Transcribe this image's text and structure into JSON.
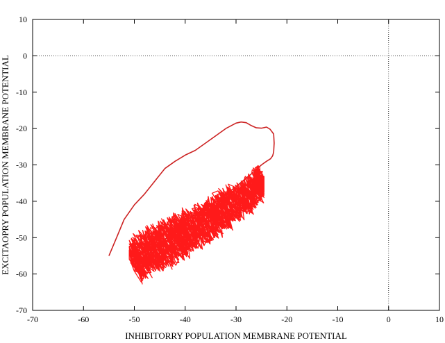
{
  "chart_data": {
    "type": "line",
    "title": "",
    "xlabel": "INHIBITORRY POPULATION MEMBRANE POTENTIAL",
    "ylabel": "EXCITAOPRY POPULATION MEMBRANE POTENTIAL",
    "xlim": [
      -70,
      10
    ],
    "ylim": [
      -70,
      10
    ],
    "x_ticks": [
      -70,
      -60,
      -50,
      -40,
      -30,
      -20,
      -10,
      0,
      10
    ],
    "y_ticks": [
      -70,
      -60,
      -50,
      -40,
      -30,
      -20,
      -10,
      0,
      10
    ],
    "x_tick_labels": [
      "-70",
      "-60",
      "-50",
      "-40",
      "-30",
      "-20",
      "-10",
      "0",
      "10"
    ],
    "y_tick_labels": [
      "-70",
      "-60",
      "-50",
      "-40",
      "-30",
      "-20",
      "-10",
      "0",
      "10"
    ],
    "zero_lines": {
      "x": 0,
      "y": 0,
      "style": "dotted"
    },
    "grid": false,
    "legend": "none",
    "series": [
      {
        "color": "#cc2222",
        "style": "transient",
        "x": [
          -55,
          -53.5,
          -52,
          -50,
          -48,
          -46,
          -44,
          -42,
          -40,
          -38,
          -36,
          -34,
          -32,
          -30,
          -29,
          -28,
          -27,
          -26,
          -25,
          -24,
          -23.3,
          -22.6,
          -22.5,
          -22.6,
          -22.8,
          -23.2,
          -24,
          -25,
          -26,
          -27,
          -28,
          -29,
          -30,
          -32,
          -34,
          -36,
          -38,
          -40,
          -42,
          -44,
          -46,
          -48,
          -49.5
        ],
        "y": [
          -55,
          -50,
          -45,
          -41,
          -38,
          -34.5,
          -31,
          -29,
          -27.3,
          -26,
          -24,
          -22,
          -20,
          -18.5,
          -18.2,
          -18.4,
          -19.2,
          -19.8,
          -19.9,
          -19.6,
          -20.2,
          -21.5,
          -24,
          -26.5,
          -27.5,
          -28.3,
          -29,
          -30,
          -31.2,
          -32.5,
          -33.6,
          -34.8,
          -36,
          -38,
          -40,
          -42,
          -43.5,
          -45.5,
          -48,
          -50.5,
          -53,
          -55.5,
          -58
        ]
      },
      {
        "color": "#ff1a1a",
        "style": "chaotic-attractor",
        "x_range": [
          -51,
          -24.5
        ],
        "y_range": [
          -65,
          -30
        ],
        "x": [
          -50,
          -49,
          -47,
          -45,
          -43,
          -41,
          -39,
          -37,
          -35,
          -33,
          -31,
          -29,
          -27,
          -25.5,
          -25
        ],
        "y": [
          -58,
          -55.5,
          -54,
          -52.5,
          -51,
          -49.5,
          -48,
          -46.5,
          -44.5,
          -43,
          -41,
          -39.5,
          -37.5,
          -35.5,
          -33
        ],
        "spread": [
          5,
          5.5,
          6,
          6,
          6,
          6,
          6,
          5.5,
          5.5,
          5,
          5,
          4.5,
          4,
          3.5,
          3
        ]
      }
    ]
  }
}
